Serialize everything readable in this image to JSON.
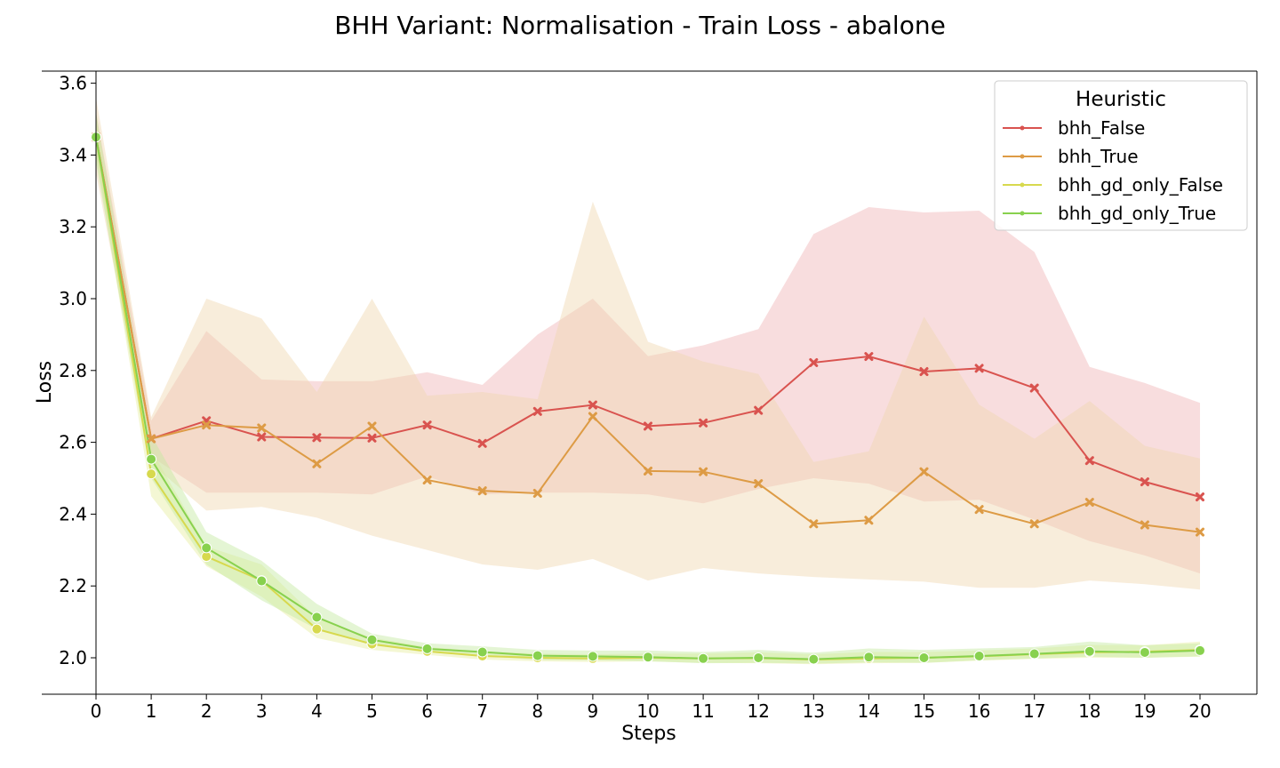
{
  "chart_data": {
    "type": "line",
    "title": "BHH Variant: Normalisation - Train Loss - abalone",
    "xlabel": "Steps",
    "ylabel": "Loss",
    "x": [
      0,
      1,
      2,
      3,
      4,
      5,
      6,
      7,
      8,
      9,
      10,
      11,
      12,
      13,
      14,
      15,
      16,
      17,
      18,
      19,
      20
    ],
    "xlim": [
      -0.5,
      21
    ],
    "ylim": [
      1.9,
      3.63
    ],
    "yticks": [
      2.0,
      2.2,
      2.4,
      2.6,
      2.8,
      3.0,
      3.2,
      3.4,
      3.6
    ],
    "ytick_labels": [
      "2.0",
      "2.2",
      "2.4",
      "2.6",
      "2.8",
      "3.0",
      "3.2",
      "3.4",
      "3.6"
    ],
    "xtick_labels": [
      "0",
      "1",
      "2",
      "3",
      "4",
      "5",
      "6",
      "7",
      "8",
      "9",
      "10",
      "11",
      "12",
      "13",
      "14",
      "15",
      "16",
      "17",
      "18",
      "19",
      "20"
    ],
    "legend": {
      "title": "Heuristic",
      "position": "top-right"
    },
    "series": [
      {
        "name": "bhh_False",
        "color": "#d9534f",
        "band_color": "#f0b4b6",
        "marker": "x",
        "values": [
          3.45,
          2.61,
          2.66,
          2.615,
          2.613,
          2.612,
          2.648,
          2.597,
          2.686,
          2.704,
          2.645,
          2.654,
          2.689,
          2.822,
          2.839,
          2.797,
          2.806,
          2.751,
          2.549,
          2.49,
          2.448
        ],
        "lower": [
          3.4,
          2.56,
          2.46,
          2.46,
          2.46,
          2.455,
          2.505,
          2.455,
          2.46,
          2.46,
          2.455,
          2.43,
          2.47,
          2.5,
          2.485,
          2.435,
          2.44,
          2.385,
          2.325,
          2.285,
          2.235
        ],
        "upper": [
          3.52,
          2.66,
          2.91,
          2.775,
          2.77,
          2.77,
          2.795,
          2.76,
          2.9,
          3.0,
          2.84,
          2.87,
          2.915,
          3.18,
          3.255,
          3.24,
          3.245,
          3.13,
          2.81,
          2.765,
          2.71
        ]
      },
      {
        "name": "bhh_True",
        "color": "#dd9b45",
        "band_color": "#efd6b0",
        "marker": "x",
        "values": [
          3.45,
          2.61,
          2.648,
          2.64,
          2.54,
          2.645,
          2.495,
          2.465,
          2.458,
          2.672,
          2.52,
          2.518,
          2.485,
          2.373,
          2.383,
          2.518,
          2.413,
          2.373,
          2.433,
          2.37,
          2.35
        ],
        "lower": [
          3.35,
          2.54,
          2.41,
          2.42,
          2.39,
          2.34,
          2.3,
          2.26,
          2.245,
          2.275,
          2.215,
          2.25,
          2.235,
          2.225,
          2.218,
          2.212,
          2.195,
          2.195,
          2.215,
          2.205,
          2.19
        ],
        "upper": [
          3.56,
          2.67,
          3.0,
          2.945,
          2.74,
          3.0,
          2.73,
          2.74,
          2.72,
          3.27,
          2.88,
          2.825,
          2.79,
          2.545,
          2.575,
          2.95,
          2.705,
          2.61,
          2.715,
          2.59,
          2.555
        ]
      },
      {
        "name": "bhh_gd_only_False",
        "color": "#d7d94e",
        "band_color": "#e6eea0",
        "marker": "o",
        "values": [
          3.45,
          2.512,
          2.282,
          2.215,
          2.08,
          2.038,
          2.018,
          2.005,
          2.0,
          1.998,
          2.0,
          1.998,
          1.999,
          1.995,
          1.998,
          2.0,
          2.004,
          2.01,
          2.015,
          2.017,
          2.022
        ],
        "lower": [
          3.4,
          2.45,
          2.255,
          2.17,
          2.055,
          2.022,
          2.008,
          1.995,
          1.99,
          1.988,
          1.99,
          1.986,
          1.985,
          1.982,
          1.985,
          1.986,
          1.992,
          1.997,
          2.0,
          2.0,
          2.003
        ],
        "upper": [
          3.5,
          2.58,
          2.31,
          2.26,
          2.11,
          2.056,
          2.03,
          2.018,
          2.012,
          2.01,
          2.012,
          2.012,
          2.015,
          2.01,
          2.016,
          2.016,
          2.02,
          2.026,
          2.036,
          2.035,
          2.045
        ]
      },
      {
        "name": "bhh_gd_only_True",
        "color": "#88d14e",
        "band_color": "#c4e8a0",
        "marker": "o",
        "values": [
          3.45,
          2.553,
          2.306,
          2.214,
          2.113,
          2.05,
          2.025,
          2.016,
          2.006,
          2.004,
          2.002,
          1.998,
          2.0,
          1.996,
          2.002,
          2.0,
          2.005,
          2.011,
          2.018,
          2.015,
          2.02
        ],
        "lower": [
          3.38,
          2.5,
          2.26,
          2.16,
          2.08,
          2.035,
          2.015,
          2.005,
          1.994,
          1.993,
          1.99,
          1.985,
          1.986,
          1.984,
          1.987,
          1.986,
          1.993,
          1.998,
          2.003,
          2.0,
          2.004
        ],
        "upper": [
          3.52,
          2.62,
          2.35,
          2.27,
          2.15,
          2.067,
          2.04,
          2.032,
          2.022,
          2.02,
          2.02,
          2.016,
          2.022,
          2.014,
          2.026,
          2.022,
          2.026,
          2.03,
          2.045,
          2.035,
          2.04
        ]
      }
    ]
  }
}
